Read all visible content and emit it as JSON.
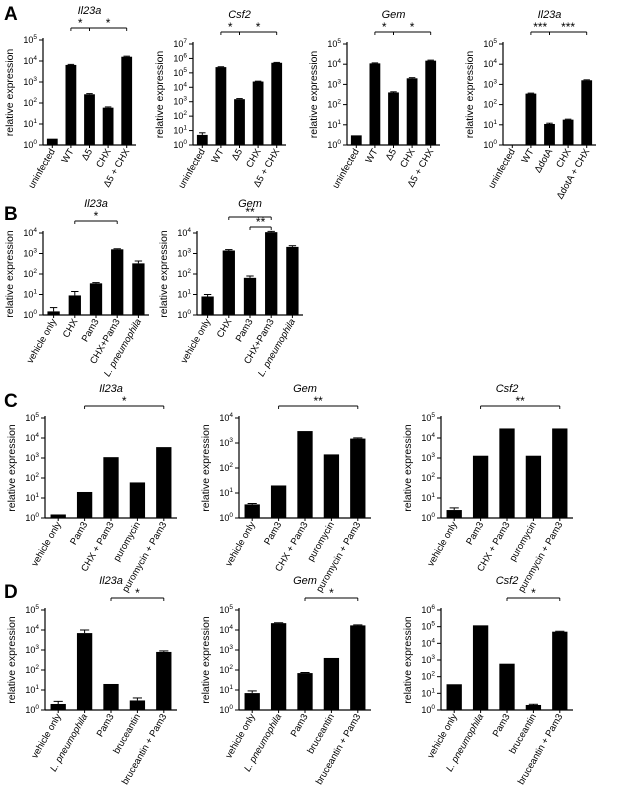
{
  "figure": {
    "panel_labels": [
      "A",
      "B",
      "C",
      "D"
    ]
  },
  "chart_data": [
    {
      "type": "bar",
      "panel": "A",
      "title": "Il23a",
      "title_italic": true,
      "ylabel": "relative expression",
      "yscale": "log",
      "ylim": [
        1,
        100000
      ],
      "categories": [
        "uninfected",
        "WT",
        "Δ5",
        "CHX",
        "Δ5 + CHX"
      ],
      "values": [
        2,
        6500,
        260,
        60,
        16000
      ],
      "errors": [
        0,
        400,
        20,
        5,
        1000
      ],
      "annotations": [
        {
          "text": "*",
          "from": 1,
          "to": 2
        },
        {
          "text": "*",
          "from": 2,
          "to": 4
        }
      ]
    },
    {
      "type": "bar",
      "panel": "A",
      "title": "Csf2",
      "title_italic": true,
      "ylabel": "relative expression",
      "yscale": "log",
      "ylim": [
        1,
        10000000
      ],
      "categories": [
        "uninfected",
        "WT",
        "Δ5",
        "CHX",
        "Δ5 + CHX"
      ],
      "values": [
        5,
        250000,
        1500,
        25000,
        500000
      ],
      "errors": [
        2,
        15000,
        150,
        1500,
        30000
      ],
      "annotations": [
        {
          "text": "*",
          "from": 1,
          "to": 2
        },
        {
          "text": "*",
          "from": 2,
          "to": 4
        }
      ]
    },
    {
      "type": "bar",
      "panel": "A",
      "title": "Gem",
      "title_italic": true,
      "ylabel": "relative expression",
      "yscale": "log",
      "ylim": [
        1,
        100000
      ],
      "categories": [
        "uninfected",
        "WT",
        "Δ5",
        "CHX",
        "Δ5 + CHX"
      ],
      "values": [
        3,
        11000,
        400,
        2000,
        15000
      ],
      "errors": [
        0,
        600,
        30,
        150,
        900
      ],
      "annotations": [
        {
          "text": "*",
          "from": 1,
          "to": 2
        },
        {
          "text": "*",
          "from": 2,
          "to": 4
        }
      ]
    },
    {
      "type": "bar",
      "panel": "A",
      "title": "Il23a",
      "title_italic": true,
      "ylabel": "relative expression",
      "yscale": "log",
      "ylim": [
        1,
        100000
      ],
      "categories": [
        "uninfected",
        "WT",
        "ΔdotA",
        "CHX",
        "ΔdotA + CHX"
      ],
      "values": [
        1,
        350,
        11,
        18,
        1600
      ],
      "errors": [
        0,
        20,
        1,
        1,
        80
      ],
      "annotations": [
        {
          "text": "***",
          "from": 1,
          "to": 2
        },
        {
          "text": "***",
          "from": 2,
          "to": 4
        }
      ]
    },
    {
      "type": "bar",
      "panel": "B",
      "title": "Il23a",
      "title_italic": true,
      "ylabel": "relative expression",
      "yscale": "log",
      "ylim": [
        1,
        10000
      ],
      "categories": [
        "vehicle only",
        "CHX",
        "Pam3",
        "CHX+Pam3",
        "L. pneumophila"
      ],
      "category_italic": [
        false,
        false,
        false,
        false,
        true
      ],
      "values": [
        1.5,
        9,
        35,
        1600,
        330
      ],
      "errors": [
        0.8,
        5,
        3,
        100,
        100
      ],
      "annotations": [
        {
          "text": "*",
          "from": 1,
          "to": 3
        }
      ]
    },
    {
      "type": "bar",
      "panel": "B",
      "title": "Gem",
      "title_italic": true,
      "ylabel": "relative expression",
      "yscale": "log",
      "ylim": [
        1,
        10000
      ],
      "categories": [
        "vehicle only",
        "CHX",
        "Pam3",
        "CHX+Pam3",
        "L. pneumophila"
      ],
      "category_italic": [
        false,
        false,
        false,
        false,
        true
      ],
      "values": [
        8,
        1400,
        65,
        11000,
        2100
      ],
      "errors": [
        2,
        150,
        15,
        1000,
        300
      ],
      "annotations": [
        {
          "text": "**",
          "from": 1,
          "to": 3
        },
        {
          "text": "**",
          "from": 2,
          "to": 3
        }
      ]
    },
    {
      "type": "bar",
      "panel": "C",
      "title": "Il23a",
      "title_italic": true,
      "ylabel": "relative expression",
      "yscale": "log",
      "ylim": [
        1,
        100000
      ],
      "categories": [
        "vehicle only",
        "Pam3",
        "CHX + Pam3",
        "puromycin",
        "puromycin + Pam3"
      ],
      "values": [
        1.5,
        20,
        1100,
        60,
        3500
      ],
      "errors": [
        0,
        0,
        0,
        0,
        0
      ],
      "annotations": [
        {
          "text": "*",
          "from": 1,
          "to": 4
        }
      ]
    },
    {
      "type": "bar",
      "panel": "C",
      "title": "Gem",
      "title_italic": true,
      "ylabel": "relative expression",
      "yscale": "log",
      "ylim": [
        1,
        10000
      ],
      "categories": [
        "vehicle only",
        "Pam3",
        "CHX + Pam3",
        "puromycin",
        "puromycin + Pam3"
      ],
      "values": [
        3.5,
        20,
        3000,
        350,
        1500
      ],
      "errors": [
        0.3,
        0,
        0,
        0,
        100
      ],
      "annotations": [
        {
          "text": "**",
          "from": 1,
          "to": 4
        }
      ]
    },
    {
      "type": "bar",
      "panel": "C",
      "title": "Csf2",
      "title_italic": true,
      "ylabel": "relative expression",
      "yscale": "log",
      "ylim": [
        1,
        100000
      ],
      "categories": [
        "vehicle only",
        "Pam3",
        "CHX + Pam3",
        "puromycin",
        "puromycin + Pam3"
      ],
      "values": [
        2.5,
        1300,
        30000,
        1300,
        30000
      ],
      "errors": [
        0.7,
        0,
        0,
        0,
        0
      ],
      "annotations": [
        {
          "text": "**",
          "from": 1,
          "to": 4
        }
      ]
    },
    {
      "type": "bar",
      "panel": "D",
      "title": "Il23a",
      "title_italic": true,
      "ylabel": "relative expression",
      "yscale": "log",
      "ylim": [
        1,
        100000
      ],
      "categories": [
        "vehicle only",
        "L. pneumophila",
        "Pam3",
        "bruceantin",
        "bruceantin + Pam3"
      ],
      "category_italic": [
        false,
        true,
        false,
        false,
        false
      ],
      "values": [
        2,
        7000,
        20,
        3,
        800
      ],
      "errors": [
        0.7,
        3000,
        0,
        1,
        100
      ],
      "annotations": [
        {
          "text": "*",
          "from": 2,
          "to": 4
        }
      ]
    },
    {
      "type": "bar",
      "panel": "D",
      "title": "Gem",
      "title_italic": true,
      "ylabel": "relative expression",
      "yscale": "log",
      "ylim": [
        1,
        100000
      ],
      "categories": [
        "vehicle only",
        "L. pneumophila",
        "Pam3",
        "bruceantin",
        "bruceantin + Pam3"
      ],
      "category_italic": [
        false,
        true,
        false,
        false,
        false
      ],
      "values": [
        7,
        22000,
        70,
        400,
        17000
      ],
      "errors": [
        2,
        1000,
        5,
        0,
        1000
      ],
      "annotations": [
        {
          "text": "*",
          "from": 2,
          "to": 4
        }
      ]
    },
    {
      "type": "bar",
      "panel": "D",
      "title": "Csf2",
      "title_italic": true,
      "ylabel": "relative expression",
      "yscale": "log",
      "ylim": [
        1,
        1000000
      ],
      "categories": [
        "vehicle only",
        "L. pneumophila",
        "Pam3",
        "bruceantin",
        "bruceantin + Pam3"
      ],
      "category_italic": [
        false,
        true,
        false,
        false,
        false
      ],
      "values": [
        35,
        120000,
        600,
        2,
        50000
      ],
      "errors": [
        0,
        0,
        0,
        0.2,
        3000
      ],
      "annotations": [
        {
          "text": "*",
          "from": 2,
          "to": 4
        }
      ]
    }
  ]
}
